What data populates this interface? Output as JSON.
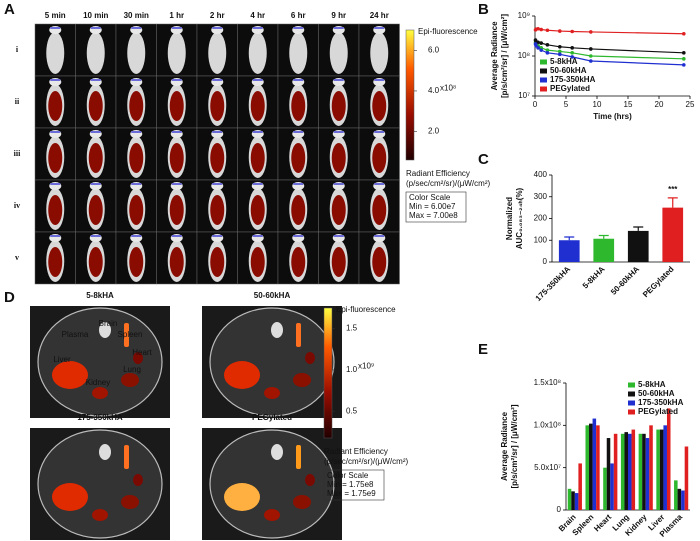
{
  "panel_labels": [
    "A",
    "B",
    "C",
    "D",
    "E"
  ],
  "panel_a": {
    "times": [
      "5 min",
      "10 min",
      "30 min",
      "1 hr",
      "2 hr",
      "4 hr",
      "6 hr",
      "9 hr",
      "24 hr"
    ],
    "rows": [
      "i",
      "ii",
      "iii",
      "iv",
      "v"
    ],
    "colorbar": {
      "title": "Epi-fluorescence",
      "lim": [
        0.6,
        7.0
      ],
      "ticks": [
        {
          "value": 6,
          "label": "6.0"
        },
        {
          "value": 4,
          "label": "4.0"
        },
        {
          "value": 2,
          "label": "2.0"
        }
      ],
      "scale": "x10⁸",
      "unit_title": "Radiant Efficiency",
      "unit": "(p/sec/cm²/sr)/(μW/cm²)",
      "color_scale": "Color Scale",
      "min": "Min = 6.00e7",
      "max": "Max = 7.00e8"
    }
  },
  "panel_d": {
    "groups": [
      "5-8kHA",
      "50-60kHA",
      "175-350kHA",
      "PEGylated"
    ],
    "organs": [
      "Brain",
      "Plasma",
      "Spleen",
      "Heart",
      "Liver",
      "Lung",
      "Kidney"
    ],
    "colorbar": {
      "title": "Epi-fluorescence",
      "lim": [
        0.175,
        1.75
      ],
      "ticks": [
        1.5,
        {
          "value": 1,
          "label": "1.0"
        },
        0.5
      ],
      "scale": "x10⁹",
      "unit_title": "Radiant Efficiency",
      "unit": "(p/sec/cm²/sr)/(μW/cm²)",
      "color_scale": "Color Scale",
      "min": "Min = 1.75e8",
      "max": "Max = 1.75e9"
    }
  },
  "chart_data": [
    {
      "type": "line",
      "yscale": "log",
      "x_label": "Time (hrs)",
      "y_label": [
        "Average Radiance",
        "[p/s/cm²/sr] / [μW/cm²]"
      ],
      "x": [
        0.083,
        0.167,
        0.5,
        1,
        2,
        4,
        6,
        9,
        24
      ],
      "xlim": [
        0,
        25
      ],
      "xticks": [
        0,
        5,
        10,
        15,
        20,
        25
      ],
      "ylim": [
        10000000,
        1000000000
      ],
      "yticks": [
        {
          "value": 10000000,
          "label": "10⁷"
        },
        {
          "value": 100000000,
          "label": "10⁸"
        },
        {
          "value": 1000000000,
          "label": "10⁹"
        }
      ],
      "legend": "lower left",
      "series": [
        {
          "name": "5-8kHA",
          "color": "#2db82d",
          "values": [
            220000000,
            200000000,
            180000000,
            160000000,
            140000000,
            130000000,
            120000000,
            100000000,
            85000000
          ]
        },
        {
          "name": "50-60kHA",
          "color": "#111111",
          "values": [
            250000000,
            230000000,
            220000000,
            210000000,
            190000000,
            170000000,
            160000000,
            150000000,
            120000000
          ]
        },
        {
          "name": "175-350kHA",
          "color": "#1f2fd0",
          "values": [
            200000000,
            180000000,
            160000000,
            140000000,
            120000000,
            110000000,
            95000000,
            75000000,
            60000000
          ]
        },
        {
          "name": "PEGylated",
          "color": "#e02020",
          "values": [
            450000000,
            470000000,
            480000000,
            460000000,
            440000000,
            420000000,
            410000000,
            400000000,
            360000000
          ]
        }
      ]
    },
    {
      "type": "bar",
      "y_label": [
        "Normalized",
        "AUC₀.₀₈₃₋₂₄ₕ(%)"
      ],
      "categories": [
        "175-350kHA",
        "5-8kHA",
        "50-60kHA",
        "PEGylated"
      ],
      "values": [
        100,
        107,
        143,
        250
      ],
      "errors": [
        15,
        15,
        18,
        45
      ],
      "colors": [
        "#1f2fd0",
        "#2db82d",
        "#111111",
        "#e02020"
      ],
      "ylim": [
        0,
        400
      ],
      "yticks": [
        0,
        100,
        200,
        300,
        400
      ],
      "annotation": "***"
    },
    {
      "type": "grouped-bar",
      "y_label": [
        "Average Radiance",
        "[p/s/cm²/sr] / [μW/cm²]"
      ],
      "categories": [
        "Brain",
        "Spleen",
        "Heart",
        "Lung",
        "Kidney",
        "Liver",
        "Plasma"
      ],
      "ylim": [
        0,
        150000000
      ],
      "yticks": [
        0,
        {
          "value": 50000000,
          "label": "5.0x10⁷"
        },
        {
          "value": 100000000,
          "label": "1.0x10⁸"
        },
        {
          "value": 150000000,
          "label": "1.5x10⁸"
        }
      ],
      "legend": "upper right",
      "series": [
        {
          "name": "5-8kHA",
          "color": "#2db82d",
          "values": [
            25000000,
            100000000,
            50000000,
            90000000,
            90000000,
            95000000,
            35000000
          ]
        },
        {
          "name": "50-60kHA",
          "color": "#111111",
          "values": [
            22000000,
            102000000,
            85000000,
            92000000,
            90000000,
            95000000,
            25000000
          ]
        },
        {
          "name": "175-350kHA",
          "color": "#1f2fd0",
          "values": [
            20000000,
            108000000,
            55000000,
            90000000,
            85000000,
            100000000,
            23000000
          ]
        },
        {
          "name": "PEGylated",
          "color": "#e02020",
          "values": [
            55000000,
            100000000,
            90000000,
            95000000,
            100000000,
            120000000,
            75000000
          ]
        }
      ]
    }
  ]
}
